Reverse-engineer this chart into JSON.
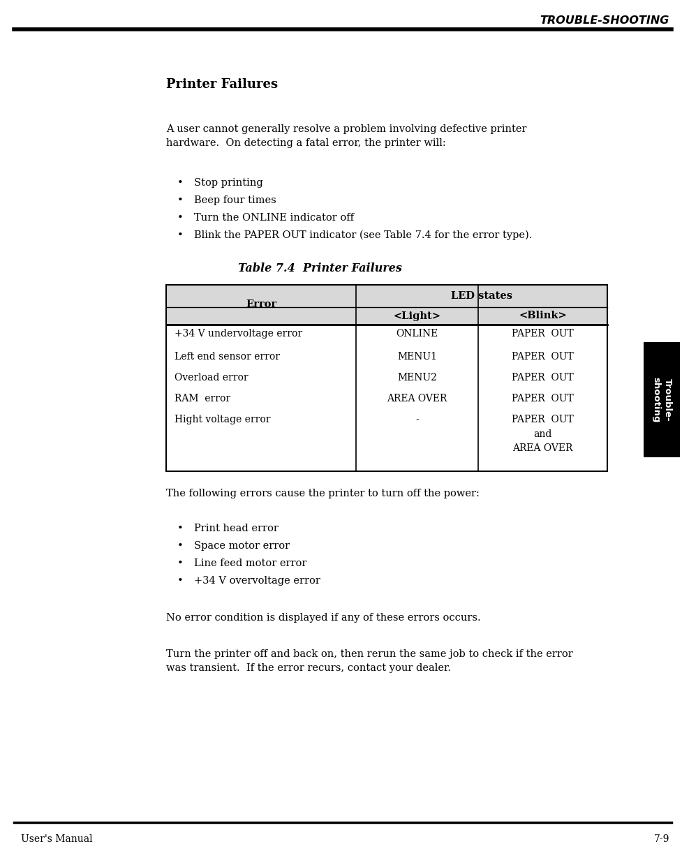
{
  "page_title": "TROUBLE-SHOOTING",
  "section_title": "Printer Failures",
  "intro_text_line1": "A user cannot generally resolve a problem involving defective printer",
  "intro_text_line2": "hardware.  On detecting a fatal error, the printer will:",
  "bullets1": [
    "Stop printing",
    "Beep four times",
    "Turn the ONLINE indicator off",
    "Blink the PAPER OUT indicator (see Table 7.4 for the error type)."
  ],
  "table_title": "Table 7.4  Printer Failures",
  "table_rows": [
    [
      "+34 V undervoltage error",
      "ONLINE",
      "PAPER  OUT"
    ],
    [
      "Left end sensor error",
      "MENU1",
      "PAPER  OUT"
    ],
    [
      "Overload error",
      "MENU2",
      "PAPER  OUT"
    ],
    [
      "RAM  error",
      "AREA OVER",
      "PAPER  OUT"
    ],
    [
      "Hight voltage error",
      "-",
      "PAPER  OUT\nand\nAREA OVER"
    ]
  ],
  "following_text": "The following errors cause the printer to turn off the power:",
  "bullets2": [
    "Print head error",
    "Space motor error",
    "Line feed motor error",
    "+34 V overvoltage error"
  ],
  "no_error_text": "No error condition is displayed if any of these errors occurs.",
  "turn_off_line1": "Turn the printer off and back on, then rerun the same job to check if the error",
  "turn_off_line2": "was transient.  If the error recurs, contact your dealer.",
  "footer_left": "User's Manual",
  "footer_right": "7-9",
  "sidebar_text": "Trouble-\nshooting",
  "bg_color": "#ffffff",
  "text_color": "#000000"
}
